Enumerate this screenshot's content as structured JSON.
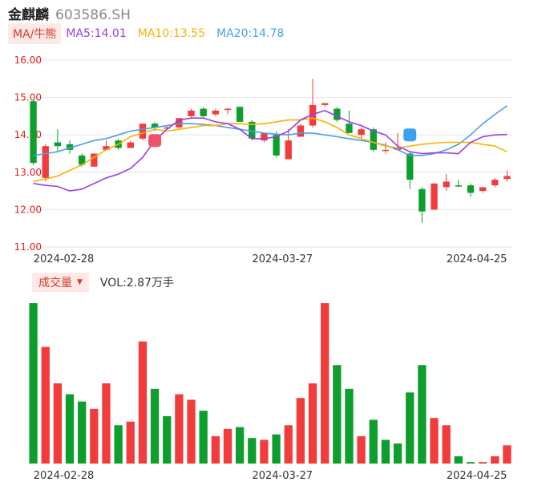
{
  "header": {
    "name": "金麒麟",
    "code": "603586.SH"
  },
  "ma_legend": {
    "tab": "MA/牛熊",
    "ma5": "MA5:14.01",
    "ma10": "MA10:13.55",
    "ma20": "MA20:14.78",
    "colors": {
      "ma5": "#9b3de8",
      "ma10": "#f5b400",
      "ma20": "#4b9ee8"
    }
  },
  "vol_legend": {
    "tab": "成交量",
    "value": "VOL:2.87万手"
  },
  "colors": {
    "up": "#f23c3c",
    "down": "#0e9e2e",
    "grid": "#e6e6e6",
    "axis_text_red": "#e02020",
    "axis_text": "#333333"
  },
  "chart_data": [
    {
      "type": "candlestick",
      "title": "",
      "y_ticks": [
        "16.00",
        "15.00",
        "14.00",
        "13.00",
        "12.00",
        "11.00"
      ],
      "ylim": [
        11.0,
        16.0
      ],
      "x_tick_labels": [
        "2024-02-28",
        "2024-03-27",
        "2024-04-25"
      ],
      "x_tick_index": [
        0,
        18,
        34
      ],
      "candles": [
        {
          "o": 14.9,
          "h": 14.95,
          "l": 13.2,
          "c": 13.25
        },
        {
          "o": 12.85,
          "h": 13.75,
          "l": 12.75,
          "c": 13.7
        },
        {
          "o": 13.8,
          "h": 14.15,
          "l": 13.55,
          "c": 13.7
        },
        {
          "o": 13.75,
          "h": 13.85,
          "l": 13.5,
          "c": 13.6
        },
        {
          "o": 13.45,
          "h": 13.5,
          "l": 13.15,
          "c": 13.2
        },
        {
          "o": 13.15,
          "h": 13.5,
          "l": 13.15,
          "c": 13.5
        },
        {
          "o": 13.6,
          "h": 13.85,
          "l": 13.6,
          "c": 13.7
        },
        {
          "o": 13.85,
          "h": 13.9,
          "l": 13.6,
          "c": 13.65
        },
        {
          "o": 13.65,
          "h": 13.85,
          "l": 13.65,
          "c": 13.8
        },
        {
          "o": 13.9,
          "h": 14.3,
          "l": 13.85,
          "c": 14.3
        },
        {
          "o": 14.3,
          "h": 14.35,
          "l": 14.1,
          "c": 14.2
        },
        {
          "o": 14.2,
          "h": 14.25,
          "l": 14.15,
          "c": 14.2
        },
        {
          "o": 14.2,
          "h": 14.45,
          "l": 14.15,
          "c": 14.45
        },
        {
          "o": 14.5,
          "h": 14.7,
          "l": 14.45,
          "c": 14.65
        },
        {
          "o": 14.7,
          "h": 14.75,
          "l": 14.45,
          "c": 14.5
        },
        {
          "o": 14.55,
          "h": 14.7,
          "l": 14.5,
          "c": 14.65
        },
        {
          "o": 14.68,
          "h": 14.72,
          "l": 14.55,
          "c": 14.7
        },
        {
          "o": 14.75,
          "h": 14.75,
          "l": 14.35,
          "c": 14.35
        },
        {
          "o": 14.35,
          "h": 14.4,
          "l": 13.85,
          "c": 13.9
        },
        {
          "o": 13.85,
          "h": 14.05,
          "l": 13.8,
          "c": 14.05
        },
        {
          "o": 14.0,
          "h": 14.1,
          "l": 13.4,
          "c": 13.45
        },
        {
          "o": 13.35,
          "h": 14.15,
          "l": 13.35,
          "c": 13.85
        },
        {
          "o": 13.95,
          "h": 14.3,
          "l": 13.95,
          "c": 14.25
        },
        {
          "o": 14.25,
          "h": 15.5,
          "l": 14.2,
          "c": 14.8
        },
        {
          "o": 14.8,
          "h": 14.85,
          "l": 14.75,
          "c": 14.85
        },
        {
          "o": 14.7,
          "h": 14.75,
          "l": 14.35,
          "c": 14.4
        },
        {
          "o": 14.3,
          "h": 14.65,
          "l": 14.05,
          "c": 14.05
        },
        {
          "o": 14.0,
          "h": 14.2,
          "l": 13.9,
          "c": 14.15
        },
        {
          "o": 14.15,
          "h": 14.2,
          "l": 13.55,
          "c": 13.6
        },
        {
          "o": 13.6,
          "h": 13.8,
          "l": 13.5,
          "c": 13.6
        },
        {
          "o": 13.6,
          "h": 14.05,
          "l": 13.6,
          "c": 13.65
        },
        {
          "o": 13.5,
          "h": 13.55,
          "l": 12.55,
          "c": 12.8
        },
        {
          "o": 12.55,
          "h": 12.6,
          "l": 11.65,
          "c": 11.95
        },
        {
          "o": 12.0,
          "h": 12.7,
          "l": 12.0,
          "c": 12.7
        },
        {
          "o": 12.6,
          "h": 12.95,
          "l": 12.5,
          "c": 12.75
        },
        {
          "o": 12.65,
          "h": 12.8,
          "l": 12.6,
          "c": 12.62
        },
        {
          "o": 12.65,
          "h": 12.7,
          "l": 12.35,
          "c": 12.45
        },
        {
          "o": 12.5,
          "h": 12.6,
          "l": 12.45,
          "c": 12.6
        },
        {
          "o": 12.65,
          "h": 12.85,
          "l": 12.6,
          "c": 12.8
        },
        {
          "o": 12.82,
          "h": 13.05,
          "l": 12.75,
          "c": 12.9
        }
      ],
      "ma5": [
        12.7,
        12.65,
        12.62,
        12.5,
        12.55,
        12.7,
        12.85,
        12.95,
        13.1,
        13.4,
        13.85,
        14.15,
        14.4,
        14.45,
        14.45,
        14.35,
        14.3,
        14.15,
        13.9,
        13.9,
        13.95,
        14.1,
        14.4,
        14.55,
        14.65,
        14.5,
        14.35,
        14.25,
        14.1,
        14.0,
        13.7,
        13.55,
        13.5,
        13.52,
        13.52,
        13.5,
        13.8,
        13.95,
        14.0,
        14.01
      ],
      "ma10": [
        12.75,
        12.82,
        12.9,
        13.05,
        13.2,
        13.4,
        13.6,
        13.75,
        13.95,
        14.05,
        14.15,
        14.1,
        14.15,
        14.2,
        14.25,
        14.25,
        14.3,
        14.3,
        14.28,
        14.3,
        14.35,
        14.4,
        14.4,
        14.45,
        14.35,
        14.2,
        14.0,
        13.9,
        13.8,
        13.7,
        13.65,
        13.7,
        13.75,
        13.78,
        13.8,
        13.8,
        13.8,
        13.75,
        13.7,
        13.55
      ],
      "ma20": [
        13.45,
        13.5,
        13.55,
        13.65,
        13.75,
        13.85,
        13.9,
        14.0,
        14.1,
        14.15,
        14.2,
        14.25,
        14.3,
        14.3,
        14.28,
        14.25,
        14.2,
        14.15,
        14.1,
        14.05,
        14.02,
        14.0,
        14.05,
        14.05,
        14.0,
        13.95,
        13.9,
        13.85,
        13.8,
        13.72,
        13.6,
        13.45,
        13.45,
        13.5,
        13.6,
        13.75,
        14.0,
        14.3,
        14.55,
        14.78
      ]
    },
    {
      "type": "bar",
      "title": "",
      "x_tick_labels": [
        "2024-02-28",
        "2024-03-27",
        "2024-04-25"
      ],
      "x_tick_index": [
        0,
        18,
        34
      ],
      "values": [
        4.4,
        3.2,
        2.2,
        1.9,
        1.7,
        1.5,
        2.2,
        1.05,
        1.15,
        3.35,
        2.05,
        1.3,
        1.9,
        1.75,
        1.45,
        0.75,
        0.95,
        1.0,
        0.7,
        0.65,
        0.8,
        1.05,
        1.8,
        2.2,
        4.4,
        2.7,
        2.05,
        0.75,
        1.2,
        0.65,
        0.55,
        1.95,
        2.7,
        1.25,
        1.05,
        0.2,
        0.04,
        0.04,
        0.2,
        0.5
      ],
      "directions": [
        "down",
        "up",
        "up",
        "down",
        "down",
        "up",
        "up",
        "down",
        "up",
        "up",
        "down",
        "down",
        "up",
        "up",
        "down",
        "up",
        "up",
        "down",
        "down",
        "up",
        "down",
        "up",
        "up",
        "up",
        "up",
        "down",
        "down",
        "up",
        "down",
        "down",
        "down",
        "down",
        "down",
        "up",
        "up",
        "down",
        "down",
        "up",
        "up",
        "up"
      ]
    }
  ]
}
